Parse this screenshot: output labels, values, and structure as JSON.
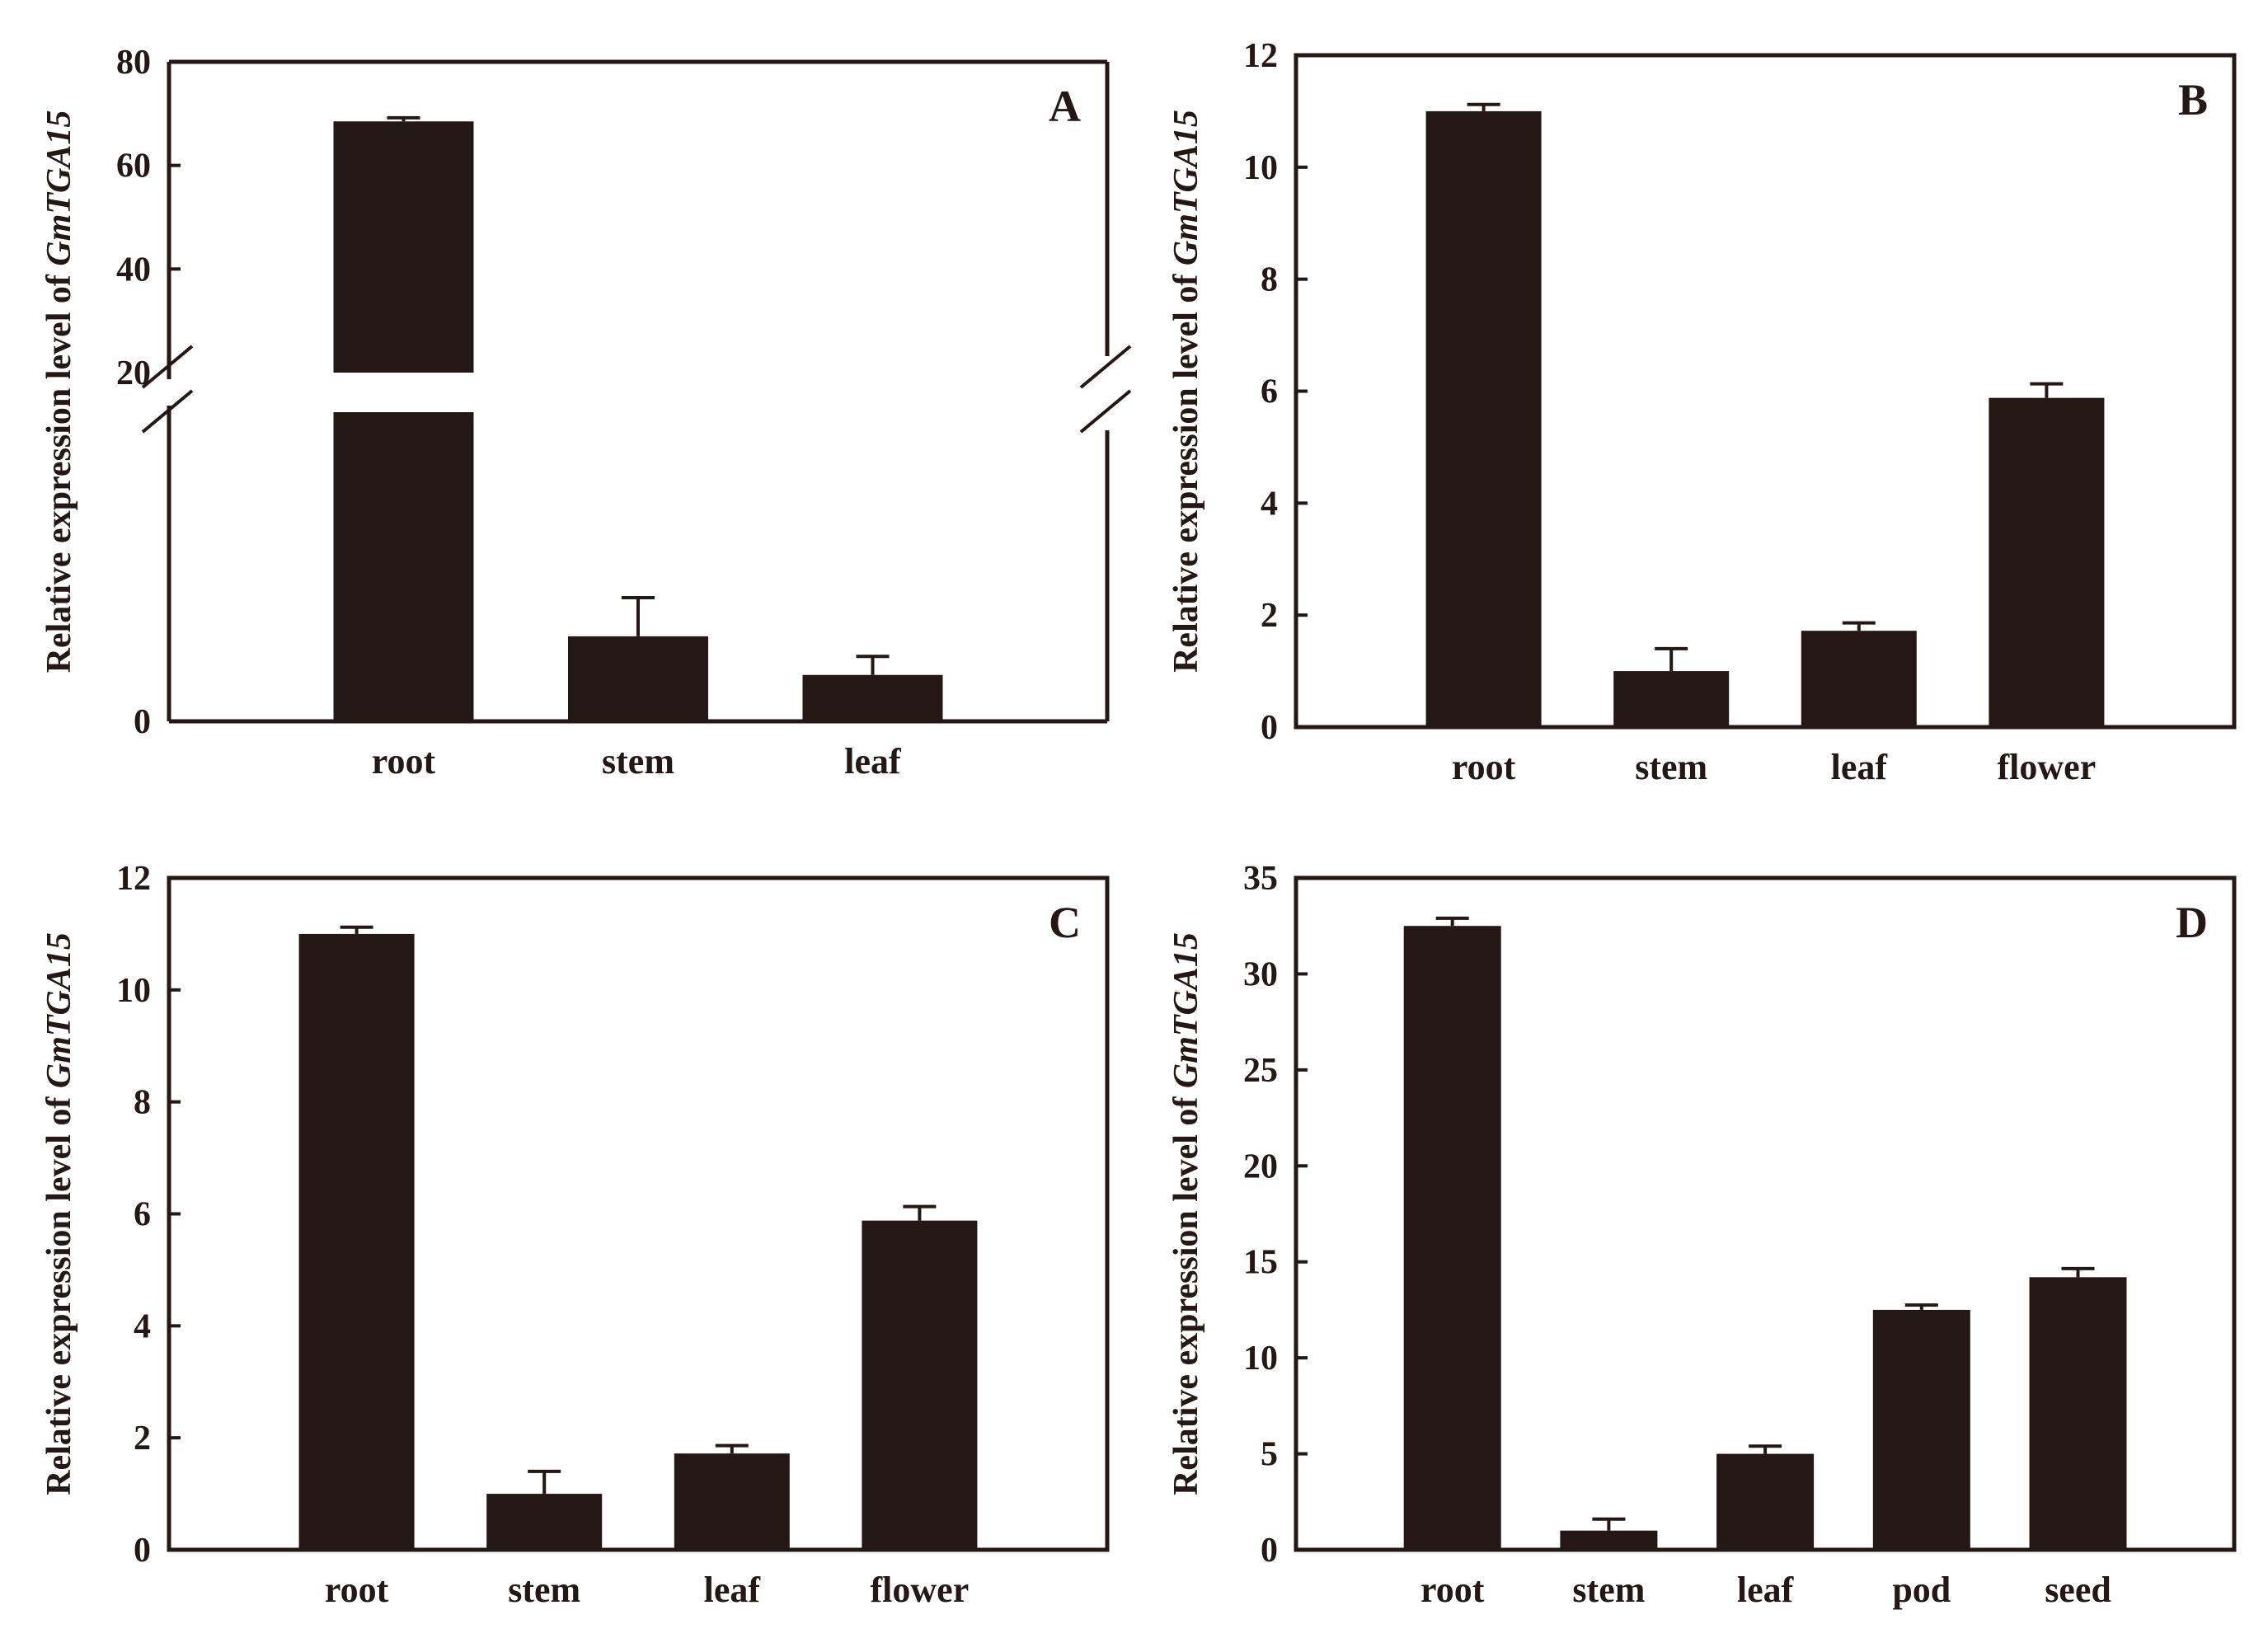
{
  "chart_data": [
    {
      "type": "bar",
      "panel_label": "A",
      "categories": [
        "root",
        "stem",
        "leaf"
      ],
      "values": [
        68.5,
        0.55,
        0.3
      ],
      "errors": [
        0.7,
        0.25,
        0.12
      ],
      "ylabel_prefix": "Relative expression level of ",
      "ylabel_gene": "GmTGA15",
      "y_break": {
        "lower_range": [
          0,
          2
        ],
        "upper_range": [
          20,
          80
        ]
      },
      "yticks": [
        {
          "value": 0,
          "label": "0"
        },
        {
          "value": 20,
          "label": "20"
        },
        {
          "value": 40,
          "label": "40"
        },
        {
          "value": 60,
          "label": "60"
        },
        {
          "value": 80,
          "label": "80"
        }
      ]
    },
    {
      "type": "bar",
      "panel_label": "B",
      "categories": [
        "root",
        "stem",
        "leaf",
        "flower"
      ],
      "values": [
        11.0,
        1.0,
        1.72,
        5.88
      ],
      "errors": [
        0.12,
        0.4,
        0.14,
        0.25
      ],
      "ylim": [
        0,
        12
      ],
      "ylabel_prefix": "Relative expression level of ",
      "ylabel_gene": "GmTGA15",
      "yticks": [
        {
          "value": 0,
          "label": "0"
        },
        {
          "value": 2,
          "label": "2"
        },
        {
          "value": 4,
          "label": "4"
        },
        {
          "value": 6,
          "label": "6"
        },
        {
          "value": 8,
          "label": "8"
        },
        {
          "value": 10,
          "label": "10"
        },
        {
          "value": 12,
          "label": "12"
        }
      ]
    },
    {
      "type": "bar",
      "panel_label": "C",
      "categories": [
        "root",
        "stem",
        "leaf",
        "flower"
      ],
      "values": [
        11.0,
        1.0,
        1.72,
        5.88
      ],
      "errors": [
        0.12,
        0.4,
        0.14,
        0.25
      ],
      "ylim": [
        0,
        12
      ],
      "ylabel_prefix": "Relative expression level of ",
      "ylabel_gene": "GmTGA15",
      "yticks": [
        {
          "value": 0,
          "label": "0"
        },
        {
          "value": 2,
          "label": "2"
        },
        {
          "value": 4,
          "label": "4"
        },
        {
          "value": 6,
          "label": "6"
        },
        {
          "value": 8,
          "label": "8"
        },
        {
          "value": 10,
          "label": "10"
        },
        {
          "value": 12,
          "label": "12"
        }
      ]
    },
    {
      "type": "bar",
      "panel_label": "D",
      "categories": [
        "root",
        "stem",
        "leaf",
        "pod",
        "seed"
      ],
      "values": [
        32.5,
        1.0,
        5.0,
        12.5,
        14.2
      ],
      "errors": [
        0.4,
        0.6,
        0.4,
        0.25,
        0.45
      ],
      "ylim": [
        0,
        35
      ],
      "ylabel_prefix": "Relative expression level of ",
      "ylabel_gene": "GmTGA15",
      "yticks": [
        {
          "value": 0,
          "label": "0"
        },
        {
          "value": 5,
          "label": "5"
        },
        {
          "value": 10,
          "label": "10"
        },
        {
          "value": 15,
          "label": "15"
        },
        {
          "value": 20,
          "label": "20"
        },
        {
          "value": 25,
          "label": "25"
        },
        {
          "value": 30,
          "label": "30"
        },
        {
          "value": 35,
          "label": "35"
        }
      ]
    }
  ]
}
